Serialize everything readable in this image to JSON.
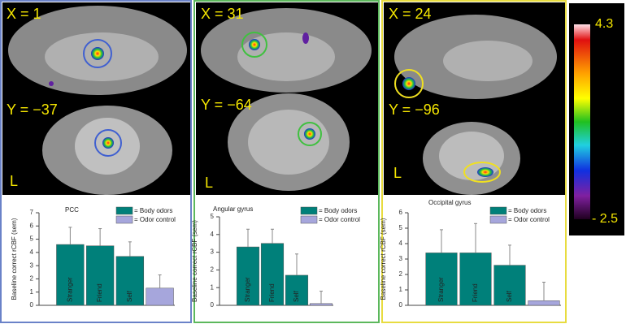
{
  "chart_data": [
    {
      "type": "bar",
      "title": "PCC",
      "y_label": "Baseline correct rCBF (sem)",
      "categories": [
        "Stranger",
        "Friend",
        "Self",
        null
      ],
      "series": [
        {
          "name": "= Body odors",
          "color": "#00807a",
          "values": [
            4.6,
            4.5,
            3.7,
            null
          ],
          "errors": [
            1.3,
            1.3,
            1.1,
            null
          ]
        },
        {
          "name": "= Odor control",
          "color": "#a6a6dc",
          "values": [
            null,
            null,
            null,
            1.3
          ],
          "errors": [
            null,
            null,
            null,
            1.0
          ]
        }
      ],
      "ylim": [
        0,
        7
      ],
      "yticks": [
        0,
        1,
        2,
        3,
        4,
        5,
        6,
        7
      ],
      "legend": "top-right"
    },
    {
      "type": "bar",
      "title": "Angular gyrus",
      "y_label": "Baseline correct rCBF (sem)",
      "categories": [
        "Stranger",
        "Friend",
        "Self",
        null
      ],
      "series": [
        {
          "name": "= Body odors",
          "color": "#00807a",
          "values": [
            3.3,
            3.5,
            1.7,
            null
          ],
          "errors": [
            1.0,
            0.8,
            1.2,
            null
          ]
        },
        {
          "name": "= Odor control",
          "color": "#a6a6dc",
          "values": [
            null,
            null,
            null,
            0.1
          ],
          "errors": [
            null,
            null,
            null,
            0.7
          ]
        }
      ],
      "ylim": [
        0,
        5
      ],
      "yticks": [
        0,
        1,
        2,
        3,
        4,
        5
      ],
      "legend": "top-right"
    },
    {
      "type": "bar",
      "title": "Occipital gyrus",
      "y_label": "Baseline correct rCBF (sem)",
      "categories": [
        "Stranger",
        "Friend",
        "Self",
        null
      ],
      "series": [
        {
          "name": "= Body odors",
          "color": "#00807a",
          "values": [
            3.4,
            3.4,
            2.6,
            null
          ],
          "errors": [
            1.5,
            1.9,
            1.3,
            null
          ]
        },
        {
          "name": "= Odor control",
          "color": "#a6a6dc",
          "values": [
            null,
            null,
            null,
            0.3
          ],
          "errors": [
            null,
            null,
            null,
            1.2
          ]
        }
      ],
      "ylim": [
        0,
        6
      ],
      "yticks": [
        0,
        1,
        2,
        3,
        4,
        5,
        6
      ],
      "legend": "top-right"
    }
  ],
  "panels": [
    {
      "x_slice": "X = 1",
      "y_slice": "Y = −37",
      "side": "L"
    },
    {
      "x_slice": "X = 31",
      "y_slice": "Y = −64",
      "side": "L"
    },
    {
      "x_slice": "X = 24",
      "y_slice": "Y = −96",
      "side": "L"
    }
  ],
  "colorbar": {
    "max_label": "4.3",
    "min_label": "- 2.5"
  }
}
